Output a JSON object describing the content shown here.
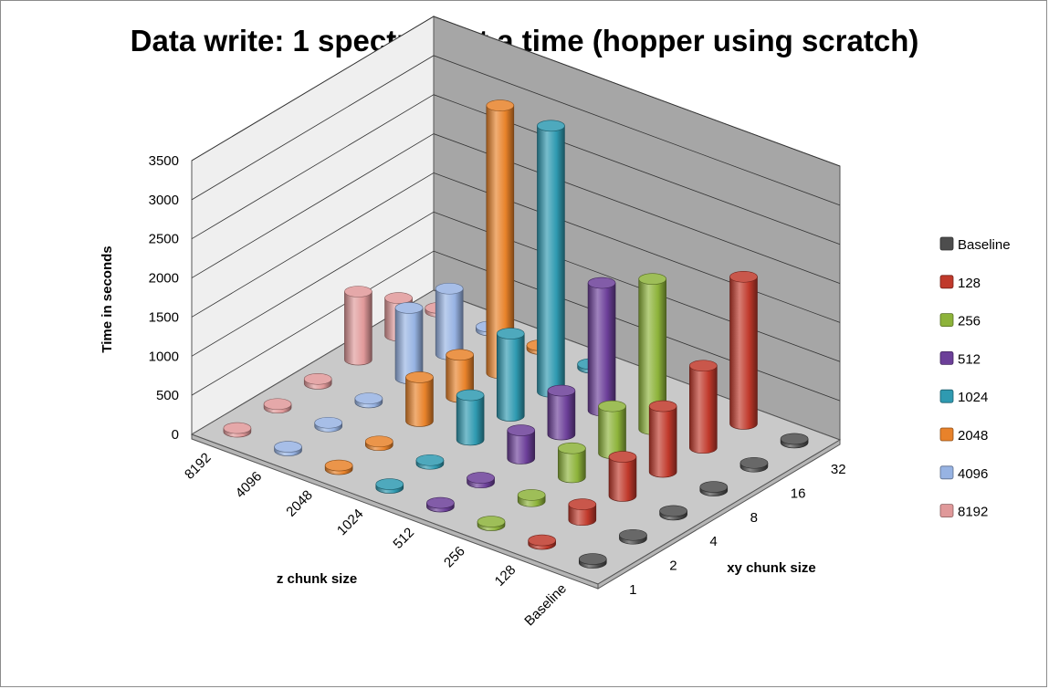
{
  "chart_data": {
    "type": "bar",
    "subtype": "3d-column",
    "title": "Data write: 1 spectrum at a time (hopper using scratch)",
    "ylabel": "Time in seconds",
    "zlabel": "z chunk size",
    "xlabel": "xy chunk size",
    "ylim": [
      0,
      3500
    ],
    "yticks": [
      "0",
      "500",
      "1000",
      "1500",
      "2000",
      "2500",
      "3000",
      "3500"
    ],
    "xy_categories": [
      "1",
      "2",
      "4",
      "8",
      "16",
      "32"
    ],
    "z_categories": [
      "Baseline",
      "128",
      "256",
      "512",
      "1024",
      "2048",
      "4096",
      "8192"
    ],
    "legend_position": "right",
    "grid": true,
    "series": [
      {
        "name": "Baseline",
        "color": "#4d4d4d",
        "values": [
          40,
          40,
          40,
          40,
          40,
          40
        ]
      },
      {
        "name": "128",
        "color": "#c0392b",
        "values": [
          40,
          200,
          500,
          840,
          1050,
          1880
        ]
      },
      {
        "name": "256",
        "color": "#8db33a",
        "values": [
          40,
          80,
          370,
          600,
          1920,
          0
        ]
      },
      {
        "name": "512",
        "color": "#6c3f99",
        "values": [
          40,
          60,
          360,
          560,
          1630,
          0
        ]
      },
      {
        "name": "1024",
        "color": "#2f9ab1",
        "values": [
          40,
          40,
          570,
          1050,
          3400,
          40
        ]
      },
      {
        "name": "2048",
        "color": "#e8822a",
        "values": [
          40,
          40,
          560,
          540,
          3420,
          40
        ]
      },
      {
        "name": "4096",
        "color": "#97b3e3",
        "values": [
          40,
          40,
          50,
          900,
          840,
          40
        ]
      },
      {
        "name": "8192",
        "color": "#e0999a",
        "values": [
          40,
          40,
          60,
          870,
          480,
          40
        ]
      }
    ]
  }
}
